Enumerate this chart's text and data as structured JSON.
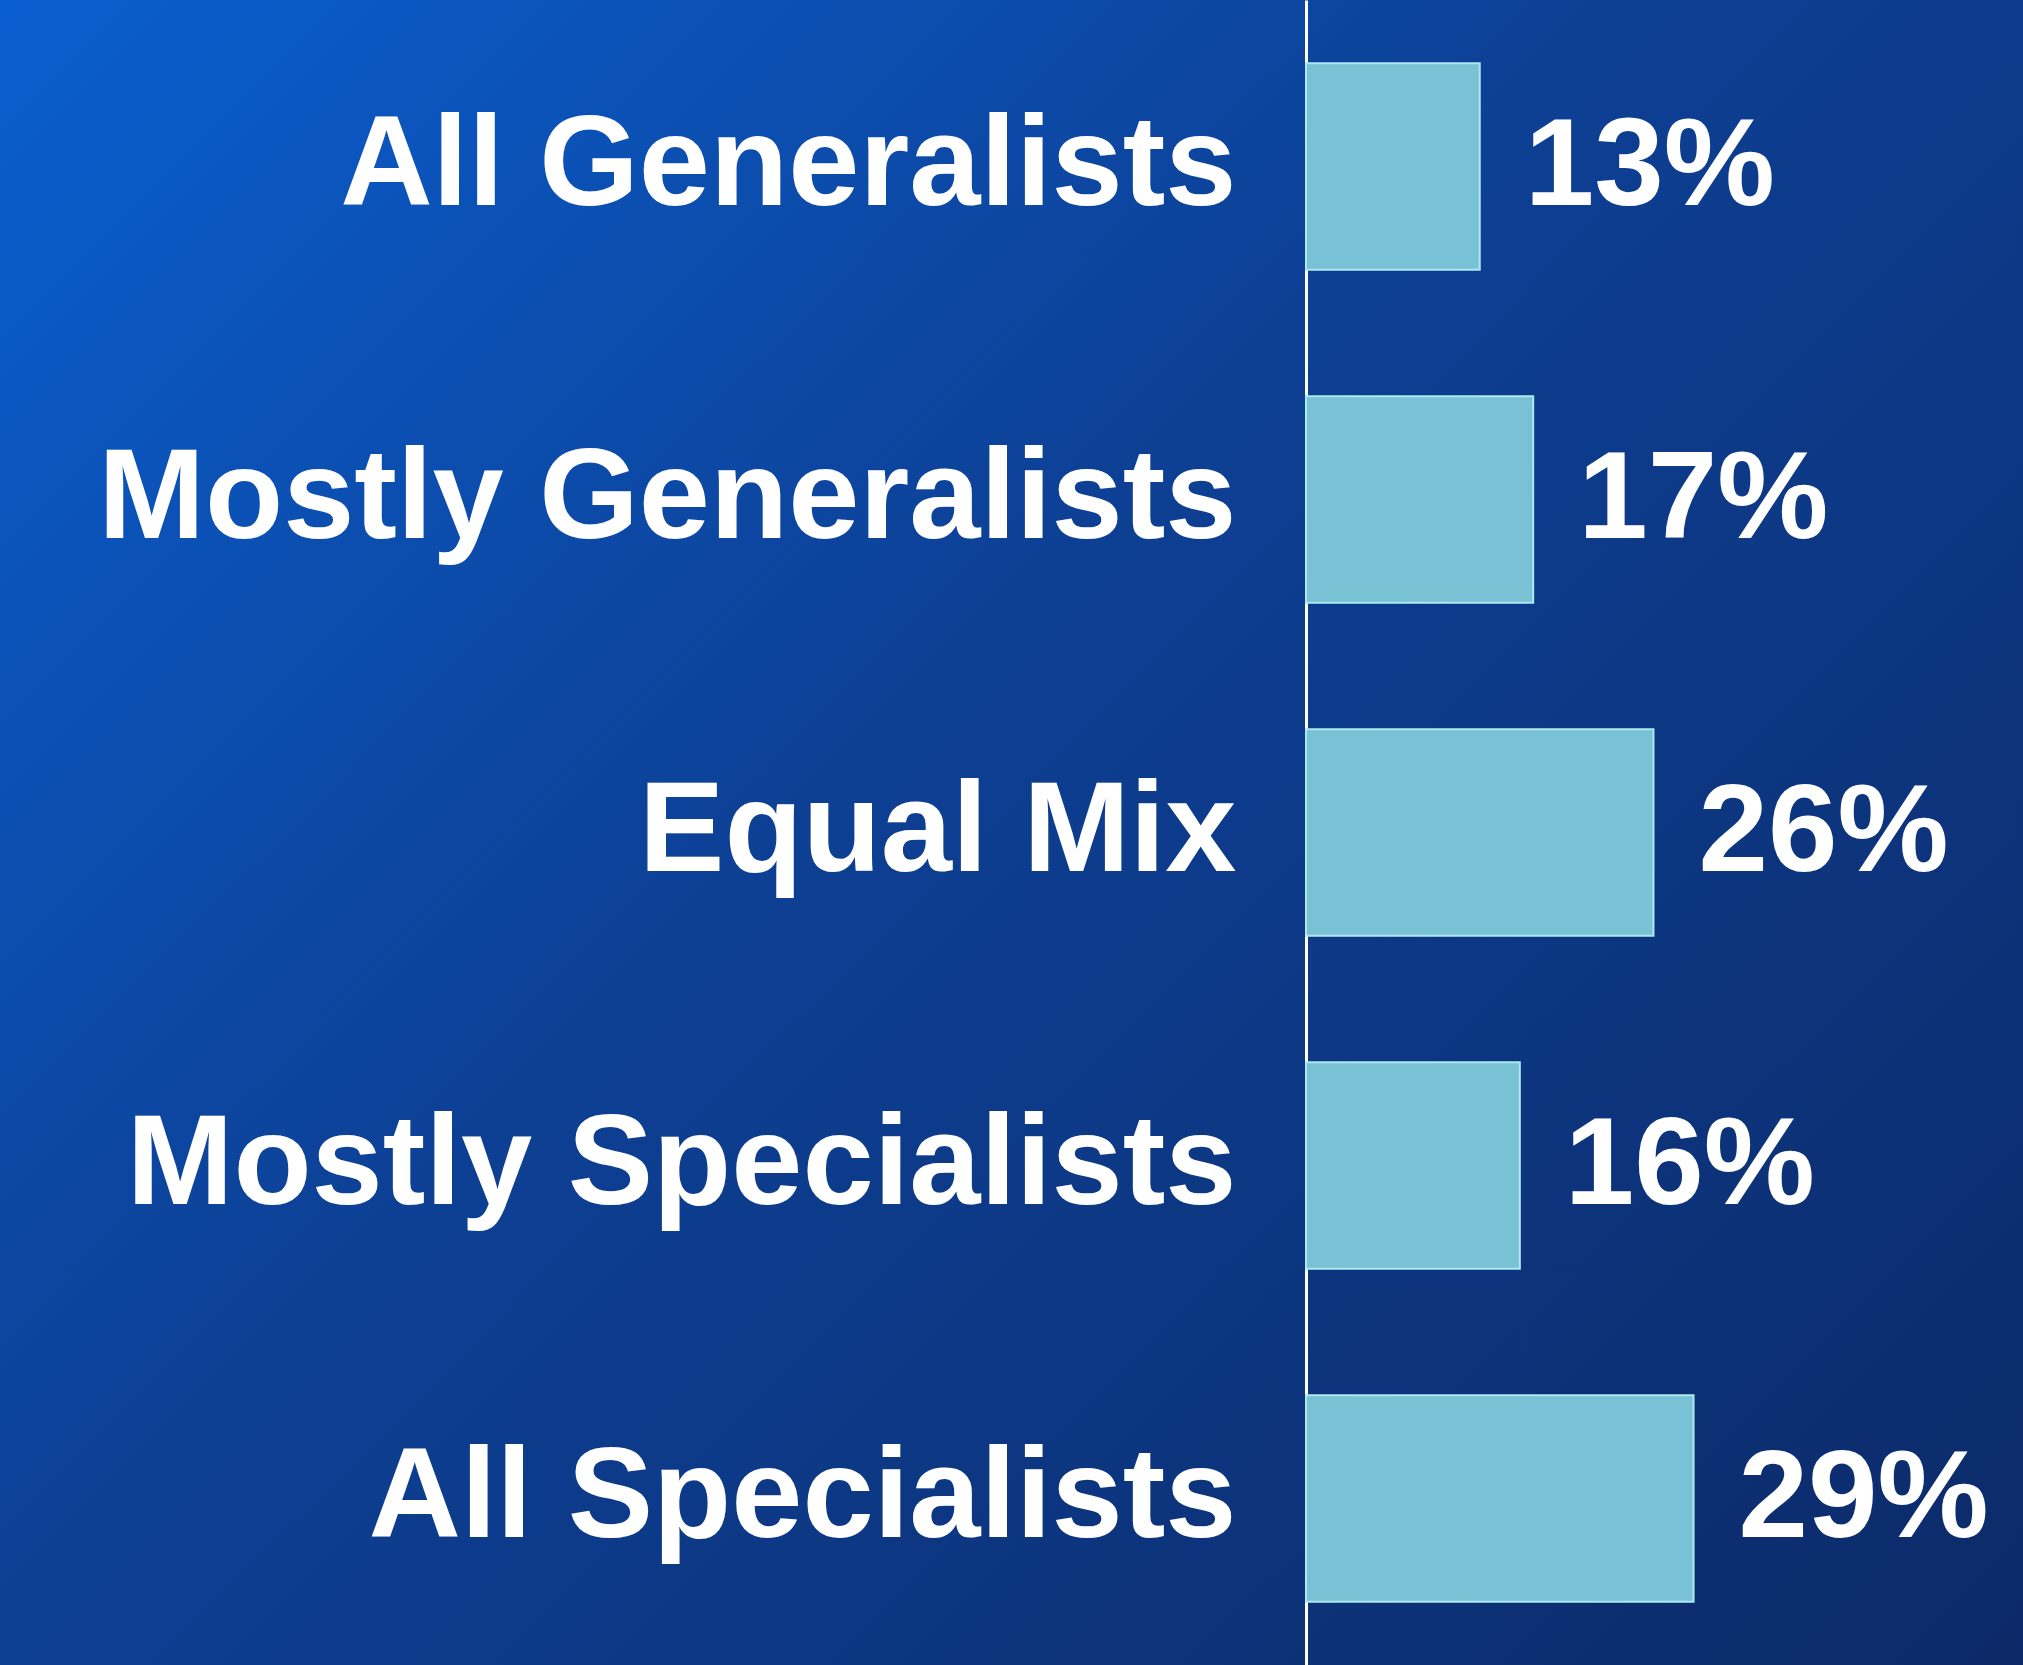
{
  "chart_data": {
    "type": "bar",
    "orientation": "horizontal",
    "categories": [
      "All Generalists",
      "Mostly Generalists",
      "Equal Mix",
      "Mostly Specialists",
      "All Specialists"
    ],
    "values": [
      13,
      17,
      26,
      16,
      29
    ],
    "value_labels": [
      "13%",
      "17%",
      "26%",
      "16%",
      "29%"
    ],
    "color": "#79c2d6"
  }
}
